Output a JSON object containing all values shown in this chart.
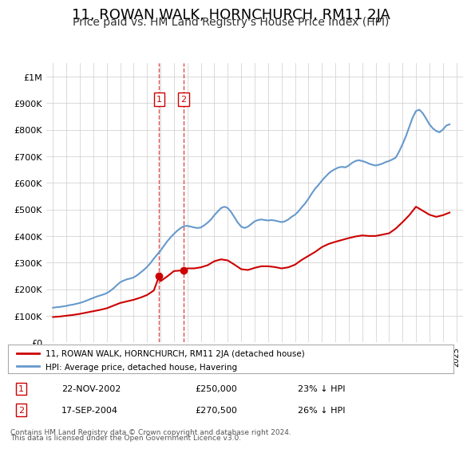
{
  "title": "11, ROWAN WALK, HORNCHURCH, RM11 2JA",
  "subtitle": "Price paid vs. HM Land Registry's House Price Index (HPI)",
  "title_fontsize": 13,
  "subtitle_fontsize": 10,
  "ylabel_fontsize": 9,
  "xlabel_fontsize": 8,
  "background_color": "#ffffff",
  "grid_color": "#cccccc",
  "property_color": "#cc0000",
  "hpi_color": "#6699cc",
  "sale_marker_color": "#cc0000",
  "dashed_line_color": "#cc0000",
  "box_color": "#cc0000",
  "legend_label_property": "11, ROWAN WALK, HORNCHURCH, RM11 2JA (detached house)",
  "legend_label_hpi": "HPI: Average price, detached house, Havering",
  "sales": [
    {
      "num": 1,
      "date_label": "22-NOV-2002",
      "price": 250000,
      "year": 2002.9,
      "hpi_pct": "23% ↓ HPI"
    },
    {
      "num": 2,
      "date_label": "17-SEP-2004",
      "price": 270500,
      "year": 2004.7,
      "hpi_pct": "26% ↓ HPI"
    }
  ],
  "footnote1": "Contains HM Land Registry data © Crown copyright and database right 2024.",
  "footnote2": "This data is licensed under the Open Government Licence v3.0.",
  "ylim": [
    0,
    1050000
  ],
  "yticks": [
    0,
    100000,
    200000,
    300000,
    400000,
    500000,
    600000,
    700000,
    800000,
    900000,
    1000000
  ],
  "ytick_labels": [
    "£0",
    "£100K",
    "£200K",
    "£300K",
    "£400K",
    "£500K",
    "£600K",
    "£700K",
    "£800K",
    "£900K",
    "£1M"
  ],
  "hpi_data": {
    "years": [
      1995.0,
      1995.25,
      1995.5,
      1995.75,
      1996.0,
      1996.25,
      1996.5,
      1996.75,
      1997.0,
      1997.25,
      1997.5,
      1997.75,
      1998.0,
      1998.25,
      1998.5,
      1998.75,
      1999.0,
      1999.25,
      1999.5,
      1999.75,
      2000.0,
      2000.25,
      2000.5,
      2000.75,
      2001.0,
      2001.25,
      2001.5,
      2001.75,
      2002.0,
      2002.25,
      2002.5,
      2002.75,
      2003.0,
      2003.25,
      2003.5,
      2003.75,
      2004.0,
      2004.25,
      2004.5,
      2004.75,
      2005.0,
      2005.25,
      2005.5,
      2005.75,
      2006.0,
      2006.25,
      2006.5,
      2006.75,
      2007.0,
      2007.25,
      2007.5,
      2007.75,
      2008.0,
      2008.25,
      2008.5,
      2008.75,
      2009.0,
      2009.25,
      2009.5,
      2009.75,
      2010.0,
      2010.25,
      2010.5,
      2010.75,
      2011.0,
      2011.25,
      2011.5,
      2011.75,
      2012.0,
      2012.25,
      2012.5,
      2012.75,
      2013.0,
      2013.25,
      2013.5,
      2013.75,
      2014.0,
      2014.25,
      2014.5,
      2014.75,
      2015.0,
      2015.25,
      2015.5,
      2015.75,
      2016.0,
      2016.25,
      2016.5,
      2016.75,
      2017.0,
      2017.25,
      2017.5,
      2017.75,
      2018.0,
      2018.25,
      2018.5,
      2018.75,
      2019.0,
      2019.25,
      2019.5,
      2019.75,
      2020.0,
      2020.25,
      2020.5,
      2020.75,
      2021.0,
      2021.25,
      2021.5,
      2021.75,
      2022.0,
      2022.25,
      2022.5,
      2022.75,
      2023.0,
      2023.25,
      2023.5,
      2023.75,
      2024.0,
      2024.25,
      2024.5
    ],
    "values": [
      130000,
      132000,
      133000,
      135000,
      137000,
      140000,
      142000,
      145000,
      148000,
      152000,
      157000,
      162000,
      167000,
      172000,
      176000,
      180000,
      185000,
      193000,
      203000,
      215000,
      226000,
      232000,
      237000,
      240000,
      244000,
      252000,
      262000,
      272000,
      284000,
      298000,
      315000,
      330000,
      345000,
      363000,
      380000,
      395000,
      408000,
      420000,
      430000,
      437000,
      438000,
      435000,
      432000,
      430000,
      432000,
      440000,
      450000,
      462000,
      478000,
      492000,
      505000,
      510000,
      505000,
      490000,
      470000,
      450000,
      435000,
      430000,
      435000,
      445000,
      455000,
      460000,
      462000,
      460000,
      458000,
      460000,
      458000,
      455000,
      452000,
      455000,
      462000,
      472000,
      480000,
      492000,
      508000,
      522000,
      540000,
      560000,
      578000,
      592000,
      608000,
      622000,
      635000,
      645000,
      652000,
      658000,
      660000,
      658000,
      665000,
      675000,
      682000,
      685000,
      682000,
      678000,
      672000,
      668000,
      665000,
      668000,
      672000,
      678000,
      682000,
      688000,
      695000,
      718000,
      745000,
      775000,
      810000,
      845000,
      870000,
      875000,
      862000,
      842000,
      820000,
      805000,
      795000,
      790000,
      800000,
      815000,
      820000
    ]
  },
  "property_data": {
    "years": [
      1995.0,
      1995.5,
      1996.0,
      1996.5,
      1997.0,
      1997.5,
      1998.0,
      1998.5,
      1999.0,
      1999.5,
      2000.0,
      2000.5,
      2001.0,
      2001.5,
      2002.0,
      2002.5,
      2002.9,
      2003.0,
      2003.5,
      2004.0,
      2004.5,
      2004.7,
      2005.0,
      2005.5,
      2006.0,
      2006.5,
      2007.0,
      2007.5,
      2008.0,
      2008.5,
      2009.0,
      2009.5,
      2010.0,
      2010.5,
      2011.0,
      2011.5,
      2012.0,
      2012.5,
      2013.0,
      2013.5,
      2014.0,
      2014.5,
      2015.0,
      2015.5,
      2016.0,
      2016.5,
      2017.0,
      2017.5,
      2018.0,
      2018.5,
      2019.0,
      2019.5,
      2020.0,
      2020.5,
      2021.0,
      2021.5,
      2022.0,
      2022.5,
      2023.0,
      2023.5,
      2024.0,
      2024.5
    ],
    "values": [
      95000,
      97000,
      100000,
      103000,
      107000,
      112000,
      117000,
      122000,
      128000,
      138000,
      148000,
      154000,
      160000,
      168000,
      178000,
      195000,
      250000,
      230000,
      248000,
      268000,
      270000,
      270500,
      278000,
      278000,
      282000,
      290000,
      305000,
      312000,
      308000,
      292000,
      275000,
      272000,
      280000,
      286000,
      286000,
      283000,
      278000,
      282000,
      292000,
      310000,
      325000,
      340000,
      358000,
      370000,
      378000,
      385000,
      392000,
      398000,
      402000,
      400000,
      400000,
      405000,
      410000,
      428000,
      452000,
      478000,
      510000,
      495000,
      480000,
      472000,
      478000,
      488000
    ]
  }
}
